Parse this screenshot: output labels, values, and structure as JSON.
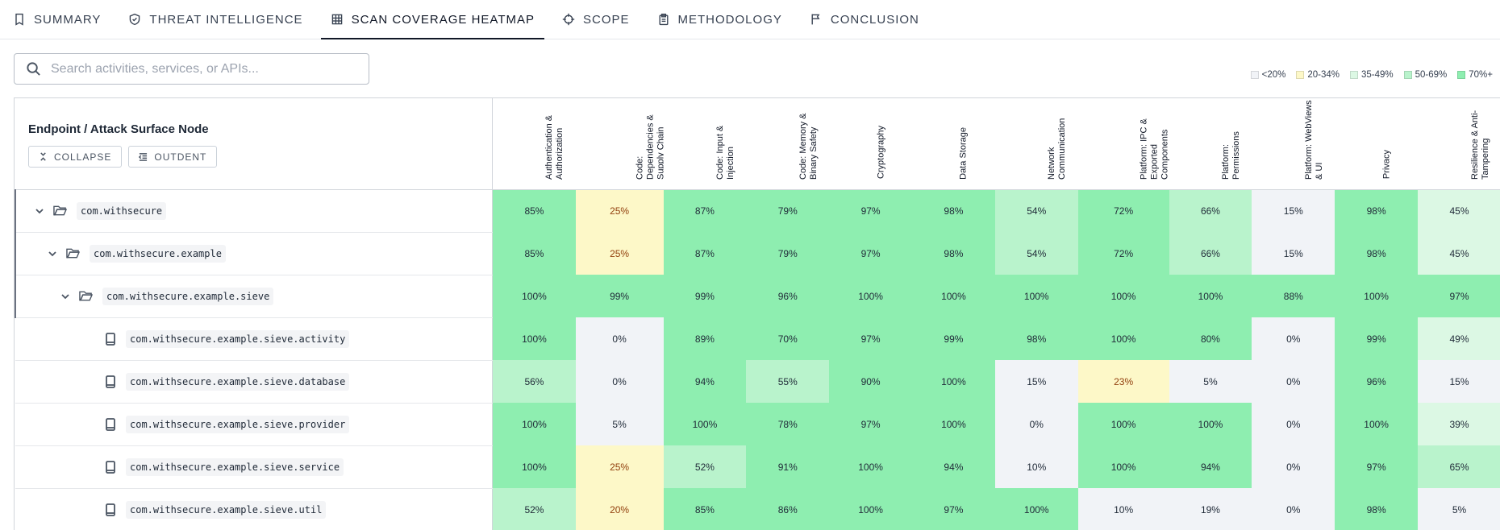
{
  "tabs": [
    {
      "label": "SUMMARY",
      "icon": "bookmark-icon",
      "active": false
    },
    {
      "label": "THREAT INTELLIGENCE",
      "icon": "shield-check-icon",
      "active": false
    },
    {
      "label": "SCAN COVERAGE HEATMAP",
      "icon": "grid-icon",
      "active": true
    },
    {
      "label": "SCOPE",
      "icon": "crosshair-icon",
      "active": false
    },
    {
      "label": "METHODOLOGY",
      "icon": "clipboard-icon",
      "active": false
    },
    {
      "label": "CONCLUSION",
      "icon": "flag-icon",
      "active": false
    }
  ],
  "search": {
    "placeholder": "Search activities, services, or APIs..."
  },
  "legend": [
    {
      "label": "<20%",
      "color": "#f1f3f7"
    },
    {
      "label": "20-34%",
      "color": "#fdf8c8"
    },
    {
      "label": "35-49%",
      "color": "#dcf8e4"
    },
    {
      "label": "50-69%",
      "color": "#b9f3cc"
    },
    {
      "label": "70%+",
      "color": "#8eeeb0"
    }
  ],
  "table": {
    "node_header": "Endpoint / Attack Surface Node",
    "collapse_label": "COLLAPSE",
    "outdent_label": "OUTDENT",
    "categories": [
      "Authentication & Authorization",
      "Code: Dependencies & Supply Chain",
      "Code: Input & Injection",
      "Code: Memory & Binary Safety",
      "Cryptography",
      "Data Storage",
      "Network Communication",
      "Platform: IPC & Exported Components",
      "Platform: Permissions",
      "Platform: WebViews & UI",
      "Privacy",
      "Resilience & Anti-Tampering"
    ],
    "rows": [
      {
        "name": "com.withsecure",
        "type": "folder",
        "depth": 0,
        "values": [
          85,
          25,
          87,
          79,
          97,
          98,
          54,
          72,
          66,
          15,
          98,
          45
        ]
      },
      {
        "name": "com.withsecure.example",
        "type": "folder",
        "depth": 1,
        "values": [
          85,
          25,
          87,
          79,
          97,
          98,
          54,
          72,
          66,
          15,
          98,
          45
        ]
      },
      {
        "name": "com.withsecure.example.sieve",
        "type": "folder",
        "depth": 2,
        "values": [
          100,
          99,
          99,
          96,
          100,
          100,
          100,
          100,
          100,
          88,
          100,
          97
        ]
      },
      {
        "name": "com.withsecure.example.sieve.activity",
        "type": "file",
        "depth": 3,
        "values": [
          100,
          0,
          89,
          70,
          97,
          99,
          98,
          100,
          80,
          0,
          99,
          49
        ]
      },
      {
        "name": "com.withsecure.example.sieve.database",
        "type": "file",
        "depth": 3,
        "values": [
          56,
          0,
          94,
          55,
          90,
          100,
          15,
          23,
          5,
          0,
          96,
          15
        ]
      },
      {
        "name": "com.withsecure.example.sieve.provider",
        "type": "file",
        "depth": 3,
        "values": [
          100,
          5,
          100,
          78,
          97,
          100,
          0,
          100,
          100,
          0,
          100,
          39
        ]
      },
      {
        "name": "com.withsecure.example.sieve.service",
        "type": "file",
        "depth": 3,
        "values": [
          100,
          25,
          52,
          91,
          100,
          94,
          10,
          100,
          94,
          0,
          97,
          65
        ]
      },
      {
        "name": "com.withsecure.example.sieve.util",
        "type": "file",
        "depth": 3,
        "values": [
          52,
          20,
          85,
          86,
          100,
          97,
          100,
          10,
          19,
          0,
          98,
          5
        ]
      }
    ]
  }
}
